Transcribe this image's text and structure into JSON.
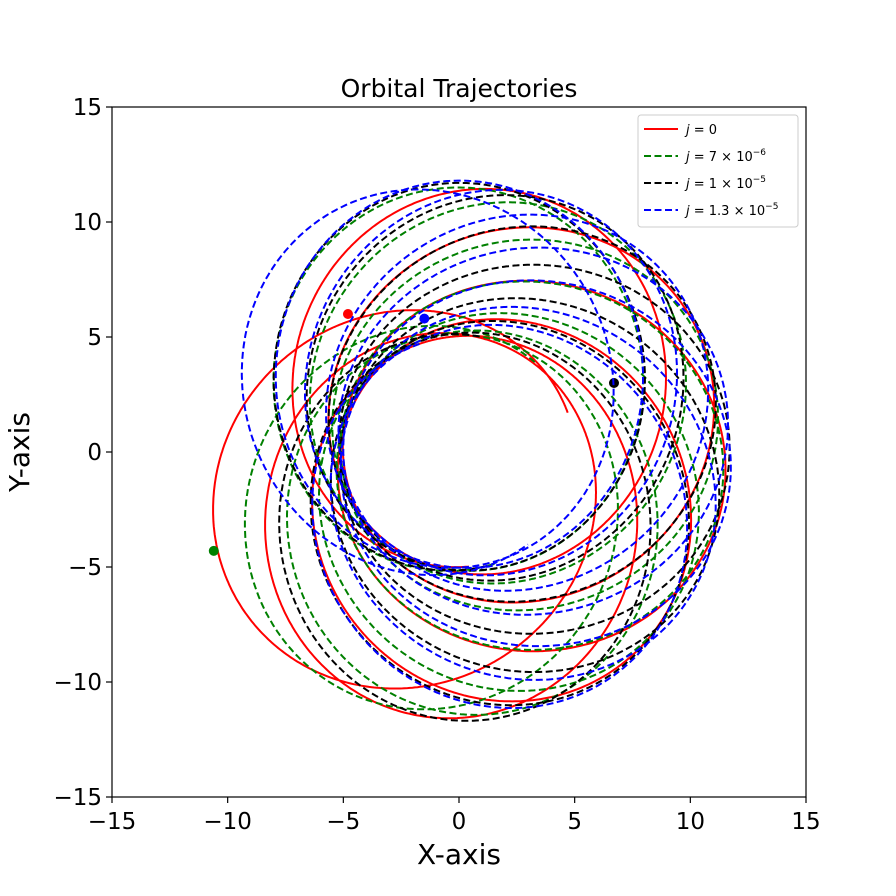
{
  "chart_data": {
    "type": "line",
    "title": "Orbital Trajectories",
    "xlabel": "X-axis",
    "ylabel": "Y-axis",
    "xlim": [
      -15,
      15
    ],
    "ylim": [
      -15,
      15
    ],
    "xticks": [
      "−15",
      "−10",
      "−5",
      "0",
      "5",
      "10",
      "15"
    ],
    "yticks": [
      "−15",
      "−10",
      "−5",
      "0",
      "5",
      "10",
      "15"
    ],
    "grid": false,
    "legend_position": "top-right",
    "series": [
      {
        "name": "j = 0",
        "label_parts": [
          "j",
          " = 0",
          ""
        ],
        "color": "#ff0000",
        "style": "solid",
        "r_inner": 5.0,
        "r_outer": 11.6,
        "precession_deg": 38,
        "orbits": 6,
        "phase_deg": 20,
        "endpoint": [
          -4.8,
          6.0
        ]
      },
      {
        "name": "j = 7 × 10^-6",
        "label_parts": [
          "j",
          " = 7 × 10",
          "−6"
        ],
        "color": "#008000",
        "style": "dashed",
        "r_inner": 5.1,
        "r_outer": 11.5,
        "precession_deg": 31,
        "orbits": 7,
        "phase_deg": 50,
        "endpoint": [
          -10.6,
          -4.3
        ]
      },
      {
        "name": "j = 1 × 10^-5",
        "label_parts": [
          "j",
          " = 1 × 10",
          "−5"
        ],
        "color": "#000000",
        "style": "dashed",
        "r_inner": 5.1,
        "r_outer": 11.7,
        "precession_deg": 27,
        "orbits": 7,
        "phase_deg": 80,
        "endpoint": [
          6.7,
          3.0
        ]
      },
      {
        "name": "j = 1.3 × 10^-5",
        "label_parts": [
          "j",
          " = 1.3 × 10",
          "−5"
        ],
        "color": "#0000ff",
        "style": "dashed",
        "r_inner": 5.0,
        "r_outer": 11.8,
        "precession_deg": 23,
        "orbits": 8,
        "phase_deg": 110,
        "endpoint": [
          -1.5,
          5.8
        ]
      }
    ]
  }
}
